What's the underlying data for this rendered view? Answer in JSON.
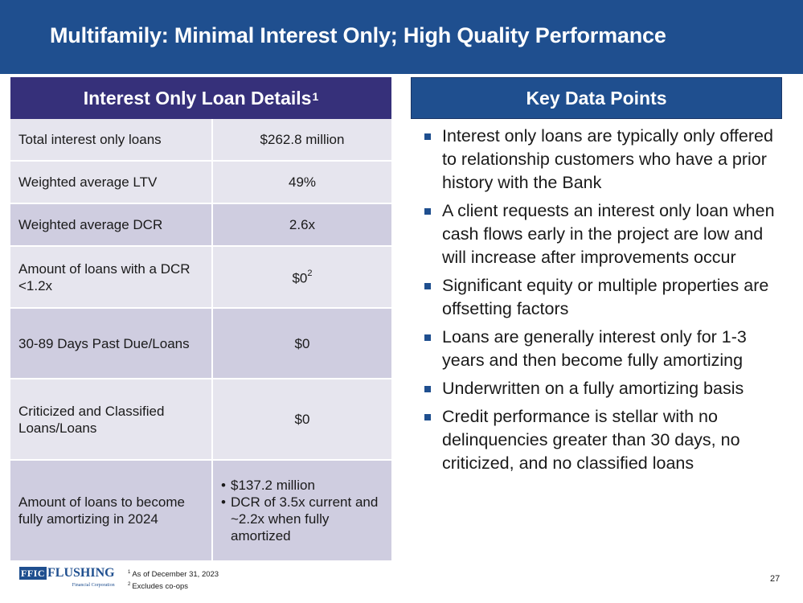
{
  "title": "Multifamily: Minimal Interest Only; High Quality Performance",
  "left_panel": {
    "header": "Interest Only Loan Details",
    "header_sup": "1",
    "rows": [
      {
        "label": "Total interest only loans",
        "value": "$262.8 million"
      },
      {
        "label": "Weighted average LTV",
        "value": "49%"
      },
      {
        "label": "Weighted average DCR",
        "value": "2.6x"
      },
      {
        "label": "Amount of loans with a DCR <1.2x",
        "value": "$0",
        "value_sup": "2"
      },
      {
        "label": "30-89 Days Past Due/Loans",
        "value": "$0"
      },
      {
        "label": "Criticized and Classified Loans/Loans",
        "value": "$0"
      },
      {
        "label": "Amount of loans to become fully amortizing in 2024",
        "value_bullets": [
          "$137.2 million",
          "DCR of 3.5x current and ~2.2x when fully amortized"
        ]
      }
    ]
  },
  "right_panel": {
    "header": "Key Data Points",
    "bullets": [
      "Interest only loans are typically only offered to relationship customers who have a prior history with the Bank",
      "A client requests an interest only loan when cash flows early in the project are low and will increase after improvements occur",
      "Significant equity or multiple properties are offsetting factors",
      "Loans are generally interest only for 1-3 years and then become fully amortizing",
      "Underwritten on a fully amortizing basis",
      "Credit performance is stellar with no delinquencies greater than 30 days, no criticized, and no classified loans"
    ]
  },
  "footer": {
    "logo_box": "FFIC",
    "logo_word": "FLUSHING",
    "logo_sub": "Financial Corporation",
    "footnotes": [
      {
        "num": "1",
        "text": "As of December 31, 2023"
      },
      {
        "num": "2",
        "text": "Excludes co-ops"
      }
    ],
    "page_number": "27"
  },
  "colors": {
    "title_bar": "#1f4f8f",
    "left_header": "#36307a",
    "row_light": "#e6e5ee",
    "row_dark": "#cfcde0",
    "bullet": "#1f4f8f"
  }
}
